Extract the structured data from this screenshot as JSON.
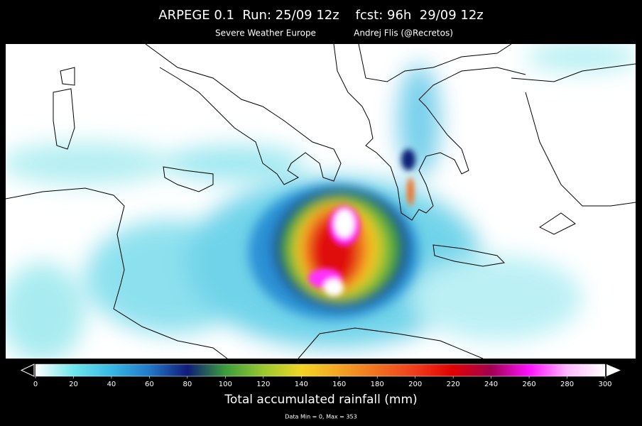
{
  "header": {
    "title": "ARPEGE 0.1  Run: 25/09 12z    fcst: 96h  29/09 12z",
    "subtitle_left": "Severe Weather Europe",
    "subtitle_right": "Andrej Flis (@Recretos)"
  },
  "colorbar": {
    "lim": [
      0,
      300
    ],
    "ticks": [
      0,
      20,
      40,
      60,
      80,
      100,
      120,
      140,
      160,
      180,
      200,
      220,
      240,
      260,
      280,
      300
    ],
    "label": "Total accumulated rainfall (mm)"
  },
  "footer": "Data Min = 0, Max = 353"
}
